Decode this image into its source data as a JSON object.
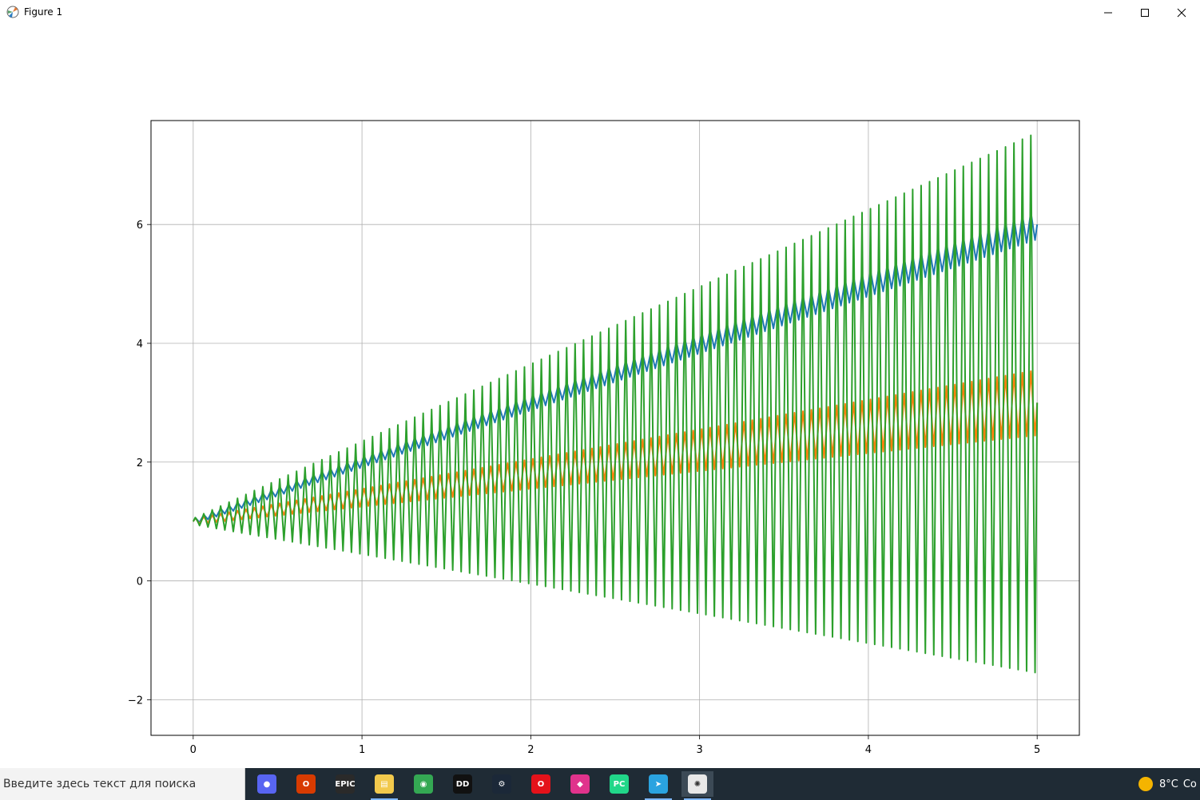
{
  "window": {
    "title": "Figure 1",
    "min_icon": "minimize-icon",
    "max_icon": "maximize-icon",
    "close_icon": "close-icon"
  },
  "taskbar": {
    "search_placeholder": "Введите здесь текст для поиска",
    "apps": [
      {
        "name": "discord-icon",
        "color": "#5865f2",
        "glyph": "●"
      },
      {
        "name": "office-icon",
        "color": "#d83b01",
        "glyph": "O"
      },
      {
        "name": "epic-games-icon",
        "color": "#2a2a2a",
        "glyph": "EPIC"
      },
      {
        "name": "file-explorer-icon",
        "color": "#f2c94c",
        "glyph": "▤"
      },
      {
        "name": "chrome-icon",
        "color": "#34a853",
        "glyph": "◉"
      },
      {
        "name": "dolby-icon",
        "color": "#111111",
        "glyph": "DD"
      },
      {
        "name": "steam-icon",
        "color": "#1b2838",
        "glyph": "⚙"
      },
      {
        "name": "opera-icon",
        "color": "#e4121a",
        "glyph": "O"
      },
      {
        "name": "cube-app-icon",
        "color": "#e0338c",
        "glyph": "◆"
      },
      {
        "name": "pycharm-icon",
        "color": "#21d789",
        "glyph": "PC"
      },
      {
        "name": "telegram-icon",
        "color": "#2aa3e0",
        "glyph": "➤"
      },
      {
        "name": "matplotlib-figure-icon",
        "color": "#e8e8e8",
        "glyph": "✺"
      }
    ],
    "weather_icon": "sun-icon",
    "temperature": "8°C",
    "tray_extra": "Co"
  },
  "colors": {
    "series1": "#1f77b4",
    "series2": "#ff7f0e",
    "series3": "#2ca02c",
    "grid": "#b0b0b0"
  },
  "chart_data": {
    "type": "line",
    "title": "",
    "xlabel": "",
    "ylabel": "",
    "xlim": [
      -0.25,
      5.25
    ],
    "ylim": [
      -2.6,
      7.75
    ],
    "xticks": [
      0,
      1,
      2,
      3,
      4,
      5
    ],
    "yticks": [
      -2,
      0,
      2,
      4,
      6
    ],
    "grid": true,
    "legend": "none",
    "x_range": [
      0,
      5
    ],
    "periods_over_range": 100,
    "series": [
      {
        "trend": "y = 1 + x",
        "oscillation_amplitude": "0.05 + 0.04x"
      },
      {
        "trend": "y = 1 + 0.4x",
        "oscillation_amplitude": "0.05 + 0.1x"
      },
      {
        "trend": "y = 1 + 0.4x",
        "oscillation_amplitude": "0.05 + 0.9x"
      }
    ]
  }
}
